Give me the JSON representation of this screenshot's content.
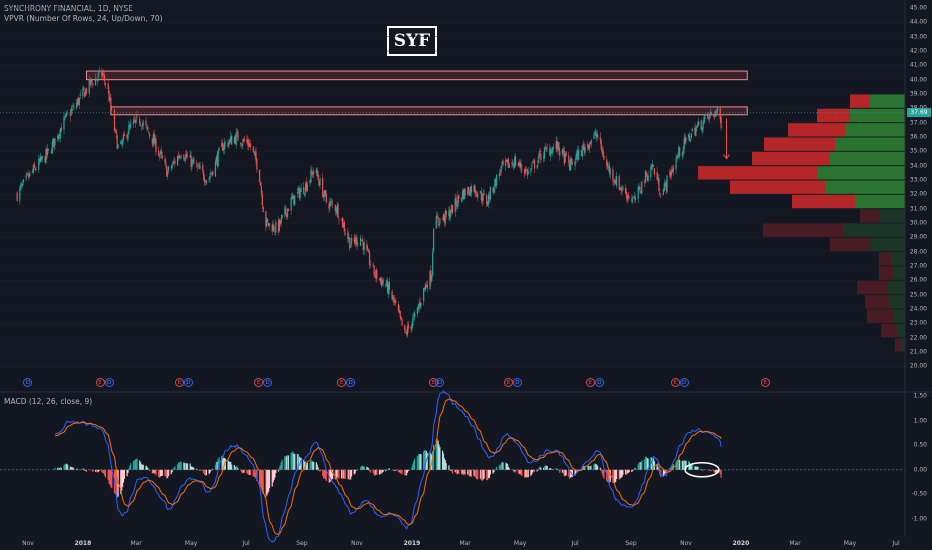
{
  "header": {
    "symbol_line": "SYNCHRONY FINANCIAL, 1D, NYSE",
    "indicator_line": "VPVR (Number Of Rows, 24, Up/Down, 70)",
    "ticker_annotation": "SYF"
  },
  "macd": {
    "label": "MACD (12, 26, close, 9)",
    "ticks": [
      "1.50",
      "1.00",
      "0.50",
      "0.00",
      "-0.50",
      "-1.00"
    ],
    "tick_values": [
      1.5,
      1.0,
      0.5,
      0.0,
      -0.5,
      -1.0
    ],
    "range": [
      -1.25,
      1.6
    ]
  },
  "colors": {
    "background": "#131722",
    "up": "#26a69a",
    "down": "#ef5350",
    "vp_up": "#2e7d32",
    "vp_down": "#c62828",
    "macd_line": "#2962ff",
    "signal_line": "#ff6d00",
    "zone": "#ef5350"
  },
  "last_price_label": "37.69",
  "chart_data": {
    "type": "candlestick",
    "title": "SYNCHRONY FINANCIAL, 1D, NYSE",
    "ylim": [
      20,
      45.5
    ],
    "y_ticks": [
      "45.00",
      "44.00",
      "43.00",
      "42.00",
      "41.00",
      "40.00",
      "39.00",
      "38.00",
      "37.00",
      "36.00",
      "35.00",
      "34.00",
      "33.00",
      "32.00",
      "31.00",
      "30.00",
      "29.00",
      "28.00",
      "27.00",
      "26.00",
      "25.00",
      "24.00",
      "23.00",
      "22.00",
      "21.00",
      "20.00"
    ],
    "x_ticks": [
      {
        "label": "Nov",
        "year": false
      },
      {
        "label": "2018",
        "year": true
      },
      {
        "label": "Mar",
        "year": false
      },
      {
        "label": "May",
        "year": false
      },
      {
        "label": "Jul",
        "year": false
      },
      {
        "label": "Sep",
        "year": false
      },
      {
        "label": "Nov",
        "year": false
      },
      {
        "label": "2019",
        "year": true
      },
      {
        "label": "Mar",
        "year": false
      },
      {
        "label": "May",
        "year": false
      },
      {
        "label": "Jul",
        "year": false
      },
      {
        "label": "Sep",
        "year": false
      },
      {
        "label": "Nov",
        "year": false
      },
      {
        "label": "2020",
        "year": true
      },
      {
        "label": "Mar",
        "year": false
      },
      {
        "label": "May",
        "year": false
      },
      {
        "label": "Jul",
        "year": false
      }
    ],
    "price_path": [
      [
        "2017-10-20",
        32.0
      ],
      [
        "2017-11-05",
        33.5
      ],
      [
        "2017-11-25",
        35.0
      ],
      [
        "2017-12-10",
        37.0
      ],
      [
        "2017-12-28",
        38.6
      ],
      [
        "2018-01-10",
        39.8
      ],
      [
        "2018-01-22",
        40.4
      ],
      [
        "2018-01-28",
        39.5
      ],
      [
        "2018-02-05",
        36.5
      ],
      [
        "2018-02-10",
        35.0
      ],
      [
        "2018-02-20",
        36.5
      ],
      [
        "2018-03-05",
        37.2
      ],
      [
        "2018-03-20",
        35.8
      ],
      [
        "2018-04-05",
        33.5
      ],
      [
        "2018-04-20",
        35.0
      ],
      [
        "2018-05-05",
        34.0
      ],
      [
        "2018-05-20",
        33.0
      ],
      [
        "2018-06-05",
        35.4
      ],
      [
        "2018-06-20",
        36.0
      ],
      [
        "2018-07-05",
        35.5
      ],
      [
        "2018-07-15",
        33.8
      ],
      [
        "2018-07-22",
        30.0
      ],
      [
        "2018-08-05",
        29.6
      ],
      [
        "2018-08-20",
        31.5
      ],
      [
        "2018-09-05",
        32.6
      ],
      [
        "2018-09-15",
        33.8
      ],
      [
        "2018-09-28",
        31.5
      ],
      [
        "2018-10-10",
        31.0
      ],
      [
        "2018-10-25",
        28.5
      ],
      [
        "2018-11-05",
        29.0
      ],
      [
        "2018-11-20",
        26.5
      ],
      [
        "2018-12-05",
        25.5
      ],
      [
        "2018-12-15",
        24.0
      ],
      [
        "2018-12-24",
        22.2
      ],
      [
        "2019-01-05",
        23.5
      ],
      [
        "2019-01-15",
        25.5
      ],
      [
        "2019-01-23",
        26.5
      ],
      [
        "2019-01-25",
        30.0
      ],
      [
        "2019-02-10",
        30.5
      ],
      [
        "2019-02-25",
        32.0
      ],
      [
        "2019-03-10",
        32.5
      ],
      [
        "2019-03-25",
        31.5
      ],
      [
        "2019-04-10",
        33.8
      ],
      [
        "2019-04-25",
        34.3
      ],
      [
        "2019-05-10",
        33.5
      ],
      [
        "2019-05-25",
        34.8
      ],
      [
        "2019-06-10",
        35.4
      ],
      [
        "2019-06-25",
        34.0
      ],
      [
        "2019-07-10",
        35.2
      ],
      [
        "2019-07-25",
        36.2
      ],
      [
        "2019-08-05",
        34.0
      ],
      [
        "2019-08-20",
        32.5
      ],
      [
        "2019-09-05",
        31.5
      ],
      [
        "2019-09-15",
        33.0
      ],
      [
        "2019-09-25",
        34.0
      ],
      [
        "2019-10-05",
        32.0
      ],
      [
        "2019-10-15",
        33.5
      ],
      [
        "2019-10-25",
        35.0
      ],
      [
        "2019-11-10",
        36.5
      ],
      [
        "2019-11-25",
        37.3
      ],
      [
        "2019-12-05",
        37.8
      ],
      [
        "2019-12-10",
        37.0
      ]
    ],
    "resistance_zones": [
      {
        "y_low": 40.0,
        "y_high": 40.6,
        "x_start": "2018-01-05",
        "x_end": "2020-01-08"
      },
      {
        "y_low": 37.55,
        "y_high": 38.1,
        "x_start": "2018-02-01",
        "x_end": "2020-01-08"
      }
    ],
    "projection_arrow": {
      "x": "2019-12-16",
      "y_from": 37.3,
      "y_to": 34.5
    },
    "volume_profile": [
      {
        "price": 38.5,
        "up": 35,
        "down": 20
      },
      {
        "price": 37.5,
        "up": 55,
        "down": 33
      },
      {
        "price": 36.5,
        "up": 60,
        "down": 57
      },
      {
        "price": 35.5,
        "up": 70,
        "down": 71
      },
      {
        "price": 34.5,
        "up": 75,
        "down": 78
      },
      {
        "price": 33.5,
        "up": 88,
        "down": 119
      },
      {
        "price": 32.5,
        "up": 80,
        "down": 95
      },
      {
        "price": 31.5,
        "up": 50,
        "down": 63
      },
      {
        "price": 30.5,
        "up": 25,
        "down": 20
      },
      {
        "price": 29.5,
        "up": 62,
        "down": 80
      },
      {
        "price": 28.5,
        "up": 35,
        "down": 40
      },
      {
        "price": 27.5,
        "up": 14,
        "down": 12
      },
      {
        "price": 26.5,
        "up": 12,
        "down": 14
      },
      {
        "price": 25.5,
        "up": 18,
        "down": 30
      },
      {
        "price": 24.5,
        "up": 16,
        "down": 24
      },
      {
        "price": 23.5,
        "up": 12,
        "down": 26
      },
      {
        "price": 22.5,
        "up": 8,
        "down": 16
      },
      {
        "price": 21.5,
        "up": 4,
        "down": 6
      }
    ]
  },
  "events": {
    "row": [
      "D",
      "E",
      "D",
      "E",
      "D",
      "E",
      "D",
      "E",
      "D",
      "E",
      "D",
      "E",
      "D",
      "E",
      "D",
      "E",
      "D",
      "E"
    ],
    "x_dates": [
      "2017-11-01",
      "2018-01-20",
      "2018-01-30",
      "2018-04-18",
      "2018-04-28",
      "2018-07-15",
      "2018-07-25",
      "2018-10-15",
      "2018-10-25",
      "2019-01-25",
      "2019-02-01",
      "2019-04-18",
      "2019-04-28",
      "2019-07-18",
      "2019-07-28",
      "2019-10-20",
      "2019-10-30",
      "2020-01-28"
    ]
  }
}
